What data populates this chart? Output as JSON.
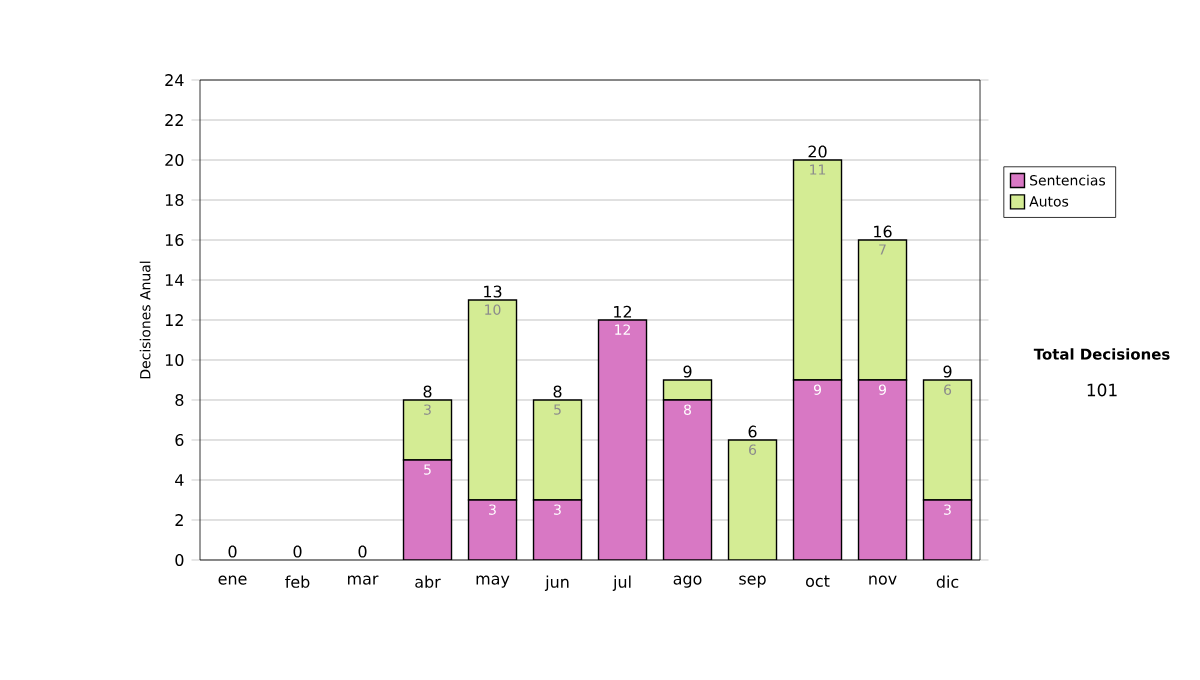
{
  "chart_data": {
    "type": "bar",
    "stacked": true,
    "ylabel": "Decisiones Anual",
    "categories": [
      "ene",
      "feb",
      "mar",
      "abr",
      "may",
      "jun",
      "jul",
      "ago",
      "sep",
      "oct",
      "nov",
      "dic"
    ],
    "series": [
      {
        "name": "Sentencias",
        "color": "#d878c4",
        "values": [
          0,
          0,
          0,
          5,
          3,
          3,
          12,
          8,
          0,
          9,
          9,
          3
        ],
        "value_labels": [
          null,
          null,
          null,
          "5",
          "3",
          "3",
          "12",
          "8",
          null,
          "9",
          "9",
          "3"
        ]
      },
      {
        "name": "Autos",
        "color": "#d4ec94",
        "values": [
          0,
          0,
          0,
          3,
          10,
          5,
          0,
          1,
          6,
          11,
          7,
          6
        ],
        "value_labels": [
          null,
          null,
          null,
          "3",
          "10",
          "5",
          null,
          null,
          "6",
          "11",
          "7",
          "6"
        ]
      }
    ],
    "totals": [
      "0",
      "0",
      "0",
      "8",
      "13",
      "8",
      "12",
      "9",
      "6",
      "20",
      "16",
      "9"
    ],
    "ylim": [
      0,
      24
    ],
    "yticks": [
      0,
      2,
      4,
      6,
      8,
      10,
      12,
      14,
      16,
      18,
      20,
      22,
      24
    ],
    "grid": "y",
    "legend": "right",
    "annotations": [
      "Total Decisiones",
      "101"
    ]
  }
}
